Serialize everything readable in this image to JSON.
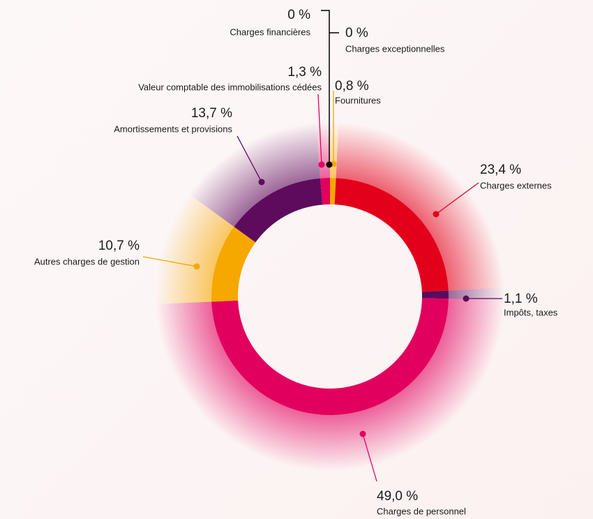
{
  "chart_data": {
    "type": "pie",
    "categories": [
      "Fournitures",
      "Charges externes",
      "Impôts, taxes",
      "Charges de personnel",
      "Autres charges de gestion",
      "Amortissements et provisions",
      "Valeur comptable des immobilisations cédées",
      "Charges financières",
      "Charges exceptionnelles"
    ],
    "values": [
      0.8,
      23.4,
      1.1,
      49.0,
      10.7,
      13.7,
      1.3,
      0,
      0
    ],
    "value_labels": [
      "0,8 %",
      "23,4 %",
      "1,1 %",
      "49,0 %",
      "10,7 %",
      "13,7 %",
      "1,3 %",
      "0 %",
      "0 %"
    ],
    "colors": [
      "#f5a800",
      "#e3001b",
      "#5c0b5c",
      "#e2005e",
      "#f6a800",
      "#5e0b5e",
      "#e2005e",
      "#000000",
      "#000000"
    ]
  }
}
